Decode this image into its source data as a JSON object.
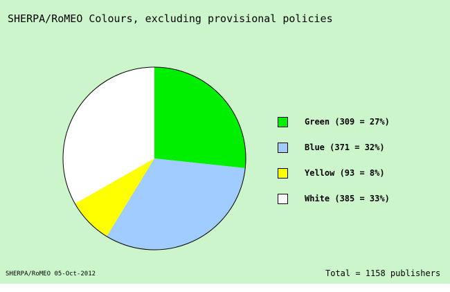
{
  "chart_data": {
    "type": "pie",
    "title": "SHERPA/RoMEO Colours, excluding provisional policies",
    "slices": [
      {
        "name": "Green",
        "value": 309,
        "percent": 27,
        "color": "#00ee00",
        "legend": "Green (309 = 27%)"
      },
      {
        "name": "Blue",
        "value": 371,
        "percent": 32,
        "color": "#a0ccff",
        "legend": "Blue (371 = 32%)"
      },
      {
        "name": "Yellow",
        "value": 93,
        "percent": 8,
        "color": "#ffff00",
        "legend": "Yellow (93 = 8%)"
      },
      {
        "name": "White",
        "value": 385,
        "percent": 33,
        "color": "#ffffff",
        "legend": "White (385 = 33%)"
      }
    ],
    "start_angle": "12 o'clock",
    "direction": "clockwise",
    "legend_position": "right",
    "source_note": "SHERPA/RoMEO 05-Oct-2012",
    "total_note": "Total = 1158 publishers"
  }
}
